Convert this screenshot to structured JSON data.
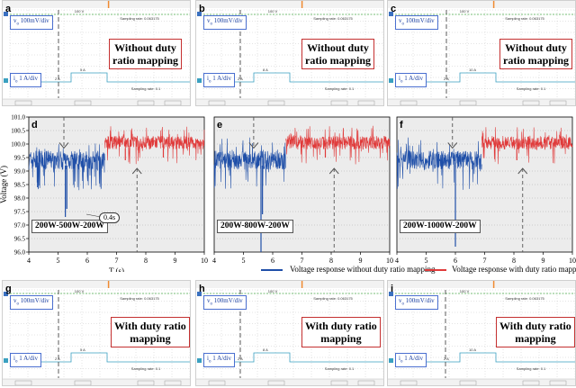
{
  "scopes": [
    {
      "id": "a",
      "label": "a",
      "v_channel": "v",
      "v_scale": "100mV/div",
      "i_channel": "i",
      "i_scale": "1 A/div",
      "box_lines": [
        "Without duty",
        "ratio mapping"
      ],
      "level_label": "100 V",
      "i_low": "2 A",
      "i_high": "5 A",
      "sampling": "Sampling rate: 0.063175",
      "sampling2": "Sampling rate: 0.1"
    },
    {
      "id": "b",
      "label": "b",
      "v_channel": "v",
      "v_scale": "100mV/div",
      "i_channel": "i",
      "i_scale": "1 A/div",
      "box_lines": [
        "Without duty",
        "ratio mapping"
      ],
      "level_label": "100 V",
      "i_low": "2 A",
      "i_high": "8 A",
      "sampling": "Sampling rate: 0.063175",
      "sampling2": "Sampling rate: 0.1"
    },
    {
      "id": "c",
      "label": "c",
      "v_channel": "v",
      "v_scale": "100mV/div",
      "i_channel": "i",
      "i_scale": "1 A/div",
      "box_lines": [
        "Without duty",
        "ratio mapping"
      ],
      "level_label": "100 V",
      "i_low": "2 A",
      "i_high": "10 A",
      "sampling": "Sampling rate: 0.063175",
      "sampling2": "Sampling rate: 0.1"
    },
    {
      "id": "g",
      "label": "g",
      "v_channel": "v",
      "v_scale": "100mV/div",
      "i_channel": "i",
      "i_scale": "1 A/div",
      "box_lines": [
        "With duty ratio",
        "mapping"
      ],
      "level_label": "100 V",
      "i_low": "2 A",
      "i_high": "5 A",
      "sampling": "Sampling rate: 0.063175",
      "sampling2": "Sampling rate: 0.1"
    },
    {
      "id": "h",
      "label": "h",
      "v_channel": "v",
      "v_scale": "100mV/div",
      "i_channel": "i",
      "i_scale": "1 A/div",
      "box_lines": [
        "With duty ratio",
        "mapping"
      ],
      "level_label": "100 V",
      "i_low": "2 A",
      "i_high": "8 A",
      "sampling": "Sampling rate: 0.063175",
      "sampling2": "Sampling rate: 0.1"
    },
    {
      "id": "i",
      "label": "i",
      "v_channel": "v",
      "v_scale": "100mV/div",
      "i_channel": "i",
      "i_scale": "1 A/div",
      "box_lines": [
        "With duty ratio",
        "mapping"
      ],
      "level_label": "100 V",
      "i_low": "2 A",
      "i_high": "10 A",
      "sampling": "Sampling rate: 0.063175",
      "sampling2": "Sampling rate: 0.1"
    }
  ],
  "chart_data": [
    {
      "type": "line",
      "panel": "d",
      "scenario": "200W-500W-200W",
      "annotation": "0.4s",
      "x_range": [
        4,
        10
      ],
      "ylim": [
        96.0,
        101.0
      ],
      "ylabel": "Voltage (V)",
      "xlabel": "T (s)",
      "x_ticks": [
        "4",
        "5",
        "6",
        "7",
        "8",
        "9",
        "10"
      ],
      "y_ticks": [
        "96.0",
        "96.5",
        "97.0",
        "97.5",
        "98.0",
        "98.5",
        "99.0",
        "99.5",
        "100.0",
        "100.5",
        "101.0"
      ],
      "series": [
        {
          "name": "Voltage response without duty ratio mapping",
          "color": "#1f4fa8",
          "t_start": 4,
          "t_end": 6.6,
          "mean": 99.4,
          "noise": 0.35,
          "spikes": [
            {
              "t": 5.25,
              "v": 97.3
            },
            {
              "t": 5.3,
              "v": 97.6
            },
            {
              "t": 4.3,
              "v": 98.4
            }
          ]
        },
        {
          "name": "Voltage response with duty ratio mapping",
          "color": "#e03a3a",
          "t_start": 6.6,
          "t_end": 10,
          "mean": 100.05,
          "noise": 0.25,
          "spikes": [
            {
              "t": 7.3,
              "v": 99.4
            },
            {
              "t": 8.6,
              "v": 99.5
            }
          ]
        }
      ],
      "arrows": [
        {
          "t": 5.2,
          "v": 99.85
        },
        {
          "t": 7.7,
          "v": 99.1
        }
      ]
    },
    {
      "type": "line",
      "panel": "e",
      "scenario": "200W-800W-200W",
      "x_range": [
        4,
        10
      ],
      "ylim": [
        96.0,
        101.0
      ],
      "x_ticks": [
        "4",
        "5",
        "6",
        "7",
        "8",
        "9",
        "10"
      ],
      "series": [
        {
          "name": "Voltage response without duty ratio mapping",
          "color": "#1f4fa8",
          "t_start": 4,
          "t_end": 6.45,
          "mean": 99.4,
          "noise": 0.35,
          "spikes": [
            {
              "t": 5.6,
              "v": 96.0
            },
            {
              "t": 5.65,
              "v": 97.4
            }
          ]
        },
        {
          "name": "Voltage response with duty ratio mapping",
          "color": "#e03a3a",
          "t_start": 6.45,
          "t_end": 10,
          "mean": 100.05,
          "noise": 0.25,
          "spikes": [
            {
              "t": 7.8,
              "v": 99.5
            }
          ]
        }
      ],
      "arrows": [
        {
          "t": 5.35,
          "v": 99.85
        },
        {
          "t": 8.1,
          "v": 99.1
        }
      ]
    },
    {
      "type": "line",
      "panel": "f",
      "scenario": "200W-1000W-200W",
      "x_range": [
        4,
        10
      ],
      "ylim": [
        96.0,
        101.0
      ],
      "x_ticks": [
        "4",
        "5",
        "6",
        "7",
        "8",
        "9",
        "10"
      ],
      "series": [
        {
          "name": "Voltage response without duty ratio mapping",
          "color": "#1f4fa8",
          "t_start": 4,
          "t_end": 6.9,
          "mean": 99.4,
          "noise": 0.35,
          "spikes": [
            {
              "t": 6.0,
              "v": 96.2
            }
          ]
        },
        {
          "name": "Voltage response with duty ratio mapping",
          "color": "#e03a3a",
          "t_start": 6.9,
          "t_end": 10,
          "mean": 100.05,
          "noise": 0.25,
          "spikes": [
            {
              "t": 8.1,
              "v": 99.4
            }
          ]
        }
      ],
      "arrows": [
        {
          "t": 5.9,
          "v": 99.85
        },
        {
          "t": 8.3,
          "v": 99.1
        }
      ]
    }
  ],
  "legend": {
    "items": [
      {
        "label": "Voltage response without duty ratio mapping",
        "color": "#1f4fa8"
      },
      {
        "label": "Voltage response with duty ratio mapping",
        "color": "#e03a3a"
      }
    ]
  }
}
